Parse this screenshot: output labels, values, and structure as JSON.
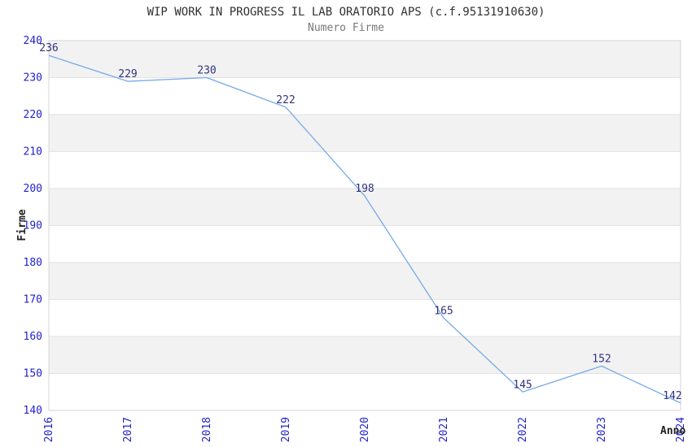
{
  "header": {
    "title": "WIP WORK IN PROGRESS IL LAB ORATORIO APS (c.f.95131910630)",
    "subtitle": "Numero Firme"
  },
  "chart_data": {
    "type": "line",
    "title": "WIP WORK IN PROGRESS IL LAB ORATORIO APS (c.f.95131910630)",
    "subtitle": "Numero Firme",
    "categories": [
      "2016",
      "2017",
      "2018",
      "2019",
      "2020",
      "2021",
      "2022",
      "2023",
      "2024"
    ],
    "values": [
      236,
      229,
      230,
      222,
      198,
      165,
      145,
      152,
      142
    ],
    "xlabel": "Anno",
    "ylabel": "Firme",
    "ylim": [
      140,
      240
    ],
    "ytick_step": 10,
    "yticks": [
      140,
      150,
      160,
      170,
      180,
      190,
      200,
      210,
      220,
      230,
      240
    ],
    "grid": "horizontal-bands",
    "legend_position": "none",
    "point_labels_shown": true,
    "xtick_rotation_degrees": -90,
    "colors": {
      "line": "#76aae8",
      "tick_label": "#2323cc",
      "point_label": "#32327e",
      "band_fill": "#f2f2f2",
      "gridline": "#e2e2e2",
      "plot_border": "#d6d6d6",
      "title": "#303030",
      "subtitle": "#787878",
      "axis_title": "#222222",
      "background": "#ffffff"
    }
  }
}
